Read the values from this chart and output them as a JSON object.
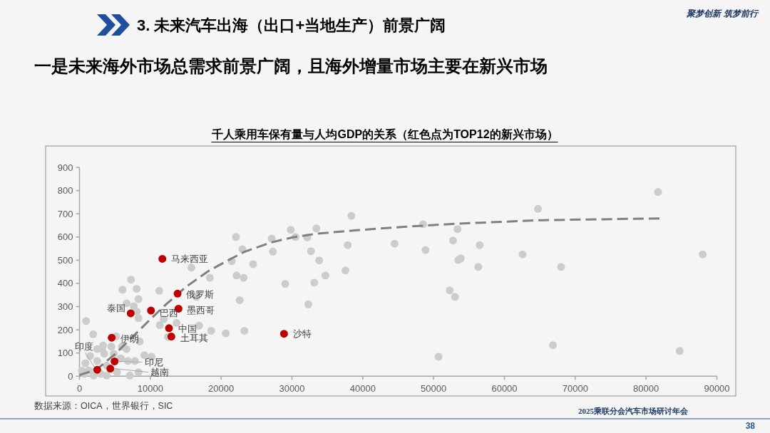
{
  "chart_data": {
    "type": "scatter",
    "title": "3. 未来汽车出海（出口+当地生产）前景广阔",
    "subtitle": "一是未来海外市场总需求前景广阔，且海外增量市场主要在新兴市场",
    "annotations": [
      "千人乘用车保有量与人均GDP的关系（红色点为TOP12的新兴市场）",
      "数据来源：OICA，世界银行，SIC",
      "聚梦创新 筑梦前行",
      "2025乘联分会汽车市场研讨年会",
      "38",
      {
        "text": "马来西亚",
        "x": 11700,
        "y": 506
      },
      {
        "text": "俄罗斯",
        "x": 13850,
        "y": 356
      },
      {
        "text": "墨西哥",
        "x": 13980,
        "y": 291
      },
      {
        "text": "泰国",
        "x": 7230,
        "y": 271
      },
      {
        "text": "巴西",
        "x": 10090,
        "y": 283
      },
      {
        "text": "中国",
        "x": 12640,
        "y": 207
      },
      {
        "text": "土耳其",
        "x": 12970,
        "y": 171
      },
      {
        "text": "伊朗",
        "x": 4550,
        "y": 166
      },
      {
        "text": "印尼",
        "x": 4950,
        "y": 64
      },
      {
        "text": "越南",
        "x": 4350,
        "y": 33
      },
      {
        "text": "印度",
        "x": 2500,
        "y": 28
      },
      {
        "text": "沙特",
        "x": 28880,
        "y": 183
      }
    ],
    "series": [
      {
        "color": "#cccccc",
        "x": [
          930,
          1930,
          7270,
          6070,
          8070,
          6660,
          8330,
          7660,
          8070,
          8330,
          11260,
          15800,
          18400,
          16500,
          11900,
          11330,
          13700,
          16900,
          18600,
          12500,
          8500,
          9160,
          10170,
          8330,
          7100,
          5300,
          3330,
          5160,
          4500,
          6000,
          6630,
          1500,
          830,
          330,
          1330,
          2500,
          3500,
          4830,
          5830,
          6830,
          3830,
          3000,
          3830,
          2000,
          670,
          7830,
          2500,
          3200,
          22100,
          23010,
          21500,
          22170,
          23180,
          24520,
          22610,
          20660,
          23280,
          27140,
          27310,
          29830,
          30490,
          29050,
          32180,
          33450,
          32680,
          33850,
          34720,
          33150,
          32310,
          38390,
          37880,
          37550,
          44490,
          48520,
          48860,
          50700,
          53390,
          52750,
          56510,
          53490,
          53830,
          56310,
          52280,
          53020,
          62560,
          64740,
          68000,
          66850,
          81690,
          84740,
          88000
        ],
        "values": [
          238,
          181,
          416,
          373,
          377,
          314,
          332,
          302,
          279,
          250,
          368,
          468,
          424,
          342,
          246,
          220,
          230,
          218,
          196,
          169,
          150,
          91,
          84,
          17,
          3,
          17,
          133,
          172,
          128,
          128,
          117,
          87,
          56,
          25,
          25,
          66,
          97,
          97,
          77,
          66,
          46,
          10,
          3,
          3,
          10,
          66,
          117,
          118,
          600,
          547,
          496,
          434,
          424,
          483,
          328,
          185,
          196,
          593,
          537,
          631,
          600,
          398,
          598,
          637,
          539,
          499,
          434,
          403,
          310,
          691,
          565,
          456,
          571,
          655,
          544,
          84,
          634,
          585,
          565,
          501,
          508,
          471,
          370,
          342,
          525,
          721,
          471,
          134,
          794,
          109,
          525
        ]
      },
      {
        "type": "line",
        "color": "#808080",
        "line_style": "dashed",
        "marker": "none",
        "x": [
          0,
          2500,
          5000,
          7500,
          10000,
          12300,
          15000,
          18300,
          21000,
          23350,
          27000,
          30000,
          33400,
          39100,
          45800,
          53200,
          64600,
          81900
        ],
        "values": [
          5,
          31,
          95,
          170,
          245,
          312,
          384,
          455,
          500,
          537,
          576,
          598,
          614,
          629,
          644,
          657,
          672,
          680
        ]
      },
      {
        "color": "#c00000",
        "x": [
          11700,
          13850,
          13980,
          7230,
          10090,
          12640,
          12970,
          4550,
          4950,
          4350,
          2500,
          28880
        ],
        "values": [
          506,
          356,
          291,
          271,
          283,
          207,
          171,
          166,
          64,
          33,
          28,
          183
        ]
      }
    ],
    "marker": "circle",
    "xlim": [
      0,
      90000
    ],
    "xticks": [
      0,
      10000,
      20000,
      30000,
      40000,
      50000,
      60000,
      70000,
      80000,
      90000
    ],
    "ylim": [
      0,
      900
    ],
    "yticks": [
      0,
      100,
      200,
      300,
      400,
      500,
      600,
      700,
      800,
      900
    ]
  }
}
